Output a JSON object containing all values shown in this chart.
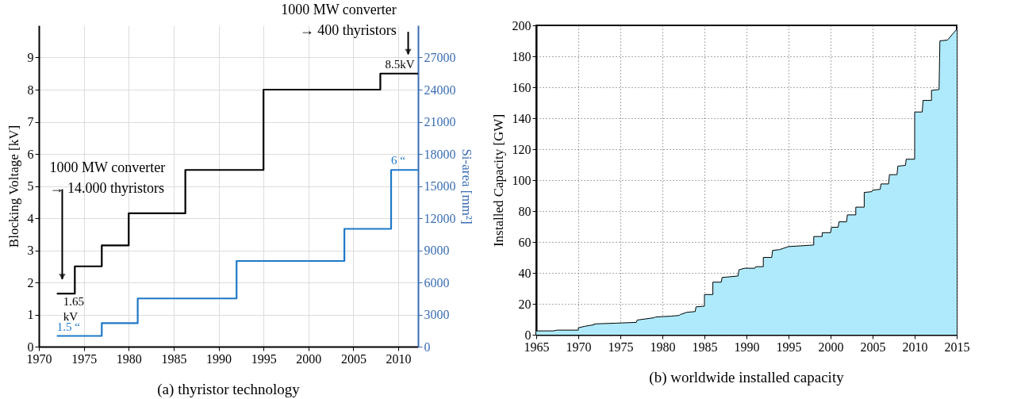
{
  "chart_data": [
    {
      "type": "step",
      "title": "(a) thyristor technology",
      "ylabel": "Blocking Voltage [kV]",
      "y2label": "Si-area [mm²]",
      "xlim": [
        1970,
        2012.2
      ],
      "xticks": [
        1970,
        1975,
        1980,
        1985,
        1990,
        1995,
        2000,
        2005,
        2010
      ],
      "ylim": [
        0,
        10
      ],
      "yticks": [
        0,
        1,
        2,
        3,
        4,
        5,
        6,
        7,
        8,
        9
      ],
      "y2lim": [
        0,
        30000
      ],
      "y2ticks": [
        0,
        3000,
        6000,
        9000,
        12000,
        15000,
        18000,
        21000,
        24000,
        27000
      ],
      "grid": true,
      "series": [
        {
          "color": "#000000",
          "x": [
            1972,
            1974,
            1977,
            1980,
            1986.3,
            1995,
            2008,
            2012.2
          ],
          "values": [
            1.65,
            2.5,
            3.15,
            4.15,
            5.5,
            8.0,
            8.5,
            8.5
          ],
          "value_labels": [
            "1.65\nkV",
            null,
            null,
            null,
            null,
            null,
            "8.5kV",
            null
          ]
        },
        {
          "color": "#1f78c8",
          "axis": "y2",
          "x": [
            1972,
            1977,
            1981,
            1992,
            2004,
            2009.2,
            2012.2
          ],
          "values": [
            1000,
            2200,
            4500,
            8000,
            11000,
            16500,
            16500
          ]
        }
      ],
      "annotations": [
        "1000 MW converter\n→ 14.000 thyristors",
        "1000 MW converter\n→ 400 thyristors",
        {
          "text": "1.5 “",
          "x": 1972,
          "y": 0.33
        },
        {
          "text": "6 “",
          "x": 2009.2,
          "y": 5.5
        }
      ]
    },
    {
      "type": "area",
      "title": "(b) worldwide installed capacity",
      "ylabel": "Installed Capacity [GW]",
      "xlim": [
        1965,
        2015
      ],
      "xticks": [
        1965,
        1970,
        1975,
        1980,
        1985,
        1990,
        1995,
        2000,
        2005,
        2010,
        2015
      ],
      "ylim": [
        0,
        200
      ],
      "yticks": [
        0,
        20,
        40,
        60,
        80,
        100,
        120,
        140,
        160,
        180,
        200
      ],
      "grid": true,
      "series": [
        {
          "color": "#aeeafc",
          "x": [
            1965,
            1967,
            1967.5,
            1970,
            1970,
            1970.8,
            1971.9,
            1971.9,
            1974.5,
            1976.9,
            1977,
            1979,
            1979.2,
            1981,
            1982,
            1982.1,
            1982.9,
            1983.9,
            1984,
            1985,
            1985,
            1986,
            1986,
            1987,
            1987.1,
            1989,
            1989.1,
            1989.8,
            1991,
            1991.1,
            1992,
            1992,
            1993,
            1993.1,
            1993.9,
            1995,
            1998,
            1998,
            1999,
            1999,
            2000,
            2000.1,
            2000.9,
            2001,
            2001.9,
            2002,
            2003,
            2003,
            2004,
            2004,
            2004.9,
            2005,
            2005.9,
            2006,
            2006.9,
            2007,
            2007.9,
            2008,
            2008.9,
            2009,
            2010,
            2010,
            2010.9,
            2011,
            2012,
            2012,
            2012.9,
            2013,
            2013.9,
            2015
          ],
          "values": [
            2.5,
            2.5,
            3,
            3,
            4.5,
            5.5,
            6.5,
            7,
            7.5,
            8,
            9.5,
            11,
            11.5,
            12,
            12.5,
            13,
            14.5,
            15,
            18,
            18.5,
            26,
            26,
            34,
            34,
            37,
            38,
            42,
            43,
            43,
            44,
            44,
            50,
            50,
            54.5,
            55,
            57,
            58,
            63.5,
            63.5,
            66,
            66,
            69.5,
            69.5,
            73,
            73,
            77.5,
            77.5,
            82.5,
            82.5,
            92,
            92.5,
            93.5,
            94,
            97.5,
            97.5,
            103.5,
            103.5,
            109,
            109.5,
            113.5,
            113.5,
            144,
            144,
            151.5,
            151.5,
            158,
            158.5,
            190,
            190.5,
            197.5
          ]
        }
      ]
    }
  ]
}
